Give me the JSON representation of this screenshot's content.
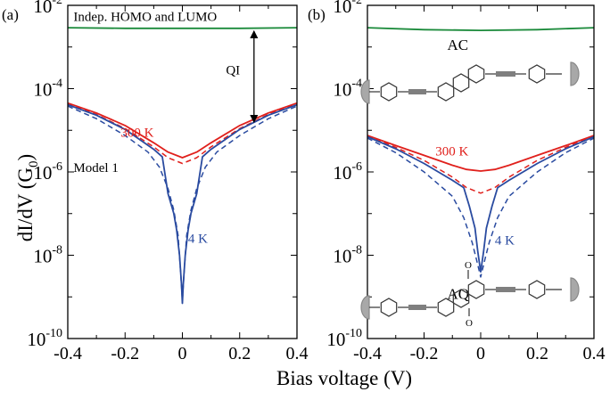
{
  "figure": {
    "ylabel_main": "dI/dV  (G",
    "ylabel_sub": "0",
    "ylabel_close": ")",
    "xlabel": "Bias voltage  (V)"
  },
  "chart_data": [
    {
      "type": "line",
      "panel_label": "(a)",
      "xlim": [
        -0.4,
        0.4
      ],
      "ylim_log10": [
        -10,
        -2
      ],
      "y_scale": "log",
      "x_ticks": [
        "-0.4",
        "-0.2",
        "0",
        "0.2",
        "0.4"
      ],
      "y_ticks": [
        {
          "base": "10",
          "exp": "-10",
          "value": 1e-10
        },
        {
          "base": "10",
          "exp": "-8",
          "value": 1e-08
        },
        {
          "base": "10",
          "exp": "-6",
          "value": 1e-06
        },
        {
          "base": "10",
          "exp": "-4",
          "value": 0.0001
        },
        {
          "base": "10",
          "exp": "-2",
          "value": 0.01
        }
      ],
      "series": [
        {
          "id": "indep",
          "color": "#1a8a3a",
          "dash": false,
          "x": [
            -0.4,
            -0.2,
            0,
            0.2,
            0.4
          ],
          "y": [
            0.0029,
            0.0028,
            0.0028,
            0.0028,
            0.0029
          ]
        },
        {
          "id": "s300",
          "color": "#e0201c",
          "dash": false,
          "x": [
            -0.4,
            -0.3,
            -0.2,
            -0.1,
            -0.05,
            0,
            0.05,
            0.1,
            0.2,
            0.3,
            0.4
          ],
          "y": [
            4.5e-05,
            2.6e-05,
            1.3e-05,
            5e-06,
            3e-06,
            2.2e-06,
            3e-06,
            5e-06,
            1.3e-05,
            2.6e-05,
            4.5e-05
          ]
        },
        {
          "id": "s300d",
          "color": "#e0201c",
          "dash": true,
          "x": [
            -0.4,
            -0.3,
            -0.2,
            -0.1,
            -0.05,
            0,
            0.05,
            0.1,
            0.2,
            0.3,
            0.4
          ],
          "y": [
            4.3e-05,
            2.4e-05,
            1.1e-05,
            4e-06,
            2.2e-06,
            1.6e-06,
            2.2e-06,
            4e-06,
            1.1e-05,
            2.4e-05,
            4.3e-05
          ]
        },
        {
          "id": "s4",
          "color": "#2a4ba0",
          "dash": false,
          "x": [
            -0.4,
            -0.3,
            -0.2,
            -0.1,
            -0.07,
            -0.05,
            -0.03,
            -0.02,
            -0.01,
            -0.003,
            0,
            0.003,
            0.01,
            0.02,
            0.03,
            0.05,
            0.07,
            0.1,
            0.2,
            0.3,
            0.4
          ],
          "y": [
            4.1e-05,
            2.3e-05,
            1.05e-05,
            3.5e-06,
            2.3e-06,
            3e-07,
            1e-07,
            4e-08,
            1e-08,
            2e-09,
            7e-10,
            2e-09,
            1e-08,
            4e-08,
            1e-07,
            3e-07,
            2.3e-06,
            3.5e-06,
            1.05e-05,
            2.3e-05,
            4.1e-05
          ]
        },
        {
          "id": "s4d",
          "color": "#2a4ba0",
          "dash": true,
          "x": [
            -0.4,
            -0.3,
            -0.2,
            -0.12,
            -0.08,
            -0.05,
            -0.03,
            -0.015,
            -0.005,
            0,
            0.005,
            0.015,
            0.03,
            0.05,
            0.08,
            0.12,
            0.2,
            0.3,
            0.4
          ],
          "y": [
            3.8e-05,
            1.9e-05,
            7.5e-06,
            3e-06,
            1.3e-06,
            4e-07,
            1.2e-07,
            3e-08,
            3e-09,
            8e-10,
            3e-09,
            3e-08,
            1.2e-07,
            4e-07,
            1.3e-06,
            3e-06,
            7.5e-06,
            1.9e-05,
            3.8e-05
          ]
        }
      ],
      "annotations": [
        {
          "id": "indep-label",
          "text": "Indep. HOMO and LUMO",
          "x": -0.38,
          "y": 0.0042,
          "color": "#000000",
          "size": 15
        },
        {
          "id": "qi-label",
          "text": "QI",
          "x": 0.152,
          "y": 0.00022,
          "color": "#000000",
          "size": 15
        },
        {
          "id": "label-300K",
          "text": "300 K",
          "x": -0.215,
          "y": 7e-06,
          "color": "#e0201c",
          "size": 15
        },
        {
          "id": "label-model1",
          "text": "Model 1",
          "x": -0.38,
          "y": 1e-06,
          "color": "#000000",
          "size": 15
        },
        {
          "id": "label-4K",
          "text": "4 K",
          "x": 0.02,
          "y": 2e-08,
          "color": "#2a4ba0",
          "size": 15
        }
      ],
      "arrow": {
        "x": 0.25,
        "y_from": 0.0028,
        "y_to": 1.35e-05,
        "label": "QI"
      }
    },
    {
      "type": "line",
      "panel_label": "(b)",
      "xlim": [
        -0.4,
        0.4
      ],
      "ylim_log10": [
        -10,
        -2
      ],
      "y_scale": "log",
      "x_ticks": [
        "-0.4",
        "-0.2",
        "0",
        "0.2",
        "0.4"
      ],
      "y_ticks": [
        {
          "base": "10",
          "exp": "-10",
          "value": 1e-10
        },
        {
          "base": "10",
          "exp": "-8",
          "value": 1e-08
        },
        {
          "base": "10",
          "exp": "-6",
          "value": 1e-06
        },
        {
          "base": "10",
          "exp": "-4",
          "value": 0.0001
        },
        {
          "base": "10",
          "exp": "-2",
          "value": 0.01
        }
      ],
      "series": [
        {
          "id": "indep",
          "color": "#1a8a3a",
          "dash": false,
          "x": [
            -0.4,
            -0.2,
            0,
            0.2,
            0.4
          ],
          "y": [
            0.0029,
            0.0026,
            0.0025,
            0.0026,
            0.0029
          ]
        },
        {
          "id": "s300",
          "color": "#e0201c",
          "dash": false,
          "x": [
            -0.4,
            -0.3,
            -0.2,
            -0.1,
            -0.05,
            0,
            0.05,
            0.1,
            0.2,
            0.3,
            0.4
          ],
          "y": [
            7.5e-06,
            4.3e-06,
            2.5e-06,
            1.45e-06,
            1.15e-06,
            1.05e-06,
            1.15e-06,
            1.45e-06,
            2.5e-06,
            4.3e-06,
            7.5e-06
          ]
        },
        {
          "id": "s300d",
          "color": "#e0201c",
          "dash": true,
          "x": [
            -0.4,
            -0.3,
            -0.2,
            -0.1,
            -0.05,
            0,
            0.05,
            0.1,
            0.2,
            0.3,
            0.4
          ],
          "y": [
            7.3e-06,
            3.9e-06,
            1.9e-06,
            7.5e-07,
            4.2e-07,
            3.1e-07,
            4.2e-07,
            7.5e-07,
            1.9e-06,
            3.9e-06,
            7.3e-06
          ]
        },
        {
          "id": "s4",
          "color": "#2a4ba0",
          "dash": false,
          "x": [
            -0.4,
            -0.3,
            -0.2,
            -0.1,
            -0.06,
            -0.04,
            -0.02,
            -0.01,
            0,
            0.01,
            0.02,
            0.04,
            0.06,
            0.1,
            0.2,
            0.3,
            0.4
          ],
          "y": [
            7e-06,
            3.6e-06,
            1.6e-06,
            6.3e-07,
            4.2e-07,
            1.5e-07,
            4.5e-08,
            1.2e-08,
            4e-09,
            1.2e-08,
            4.5e-08,
            1.5e-07,
            4.2e-07,
            6.3e-07,
            1.6e-06,
            3.6e-06,
            7e-06
          ]
        },
        {
          "id": "s4d",
          "color": "#2a4ba0",
          "dash": true,
          "x": [
            -0.4,
            -0.3,
            -0.2,
            -0.1,
            -0.06,
            -0.03,
            -0.015,
            0,
            0.015,
            0.03,
            0.06,
            0.1,
            0.2,
            0.3,
            0.4
          ],
          "y": [
            6.5e-06,
            2.9e-06,
            1e-06,
            2.6e-07,
            8e-08,
            2e-08,
            8e-09,
            3e-09,
            8e-09,
            2e-08,
            8e-08,
            2.6e-07,
            1e-06,
            2.9e-06,
            6.5e-06
          ]
        }
      ],
      "annotations": [
        {
          "id": "label-AC",
          "text": "AC",
          "x": -0.118,
          "y": 0.00085,
          "color": "#000000",
          "size": 17
        },
        {
          "id": "label-300K",
          "text": "300 K",
          "x": -0.16,
          "y": 2.5e-06,
          "color": "#e0201c",
          "size": 15
        },
        {
          "id": "label-4K",
          "text": "4 K",
          "x": 0.05,
          "y": 1.8e-08,
          "color": "#2a4ba0",
          "size": 15
        },
        {
          "id": "label-AQ",
          "text": "AQ",
          "x": -0.118,
          "y": 9e-10,
          "color": "#000000",
          "size": 17
        }
      ]
    }
  ]
}
